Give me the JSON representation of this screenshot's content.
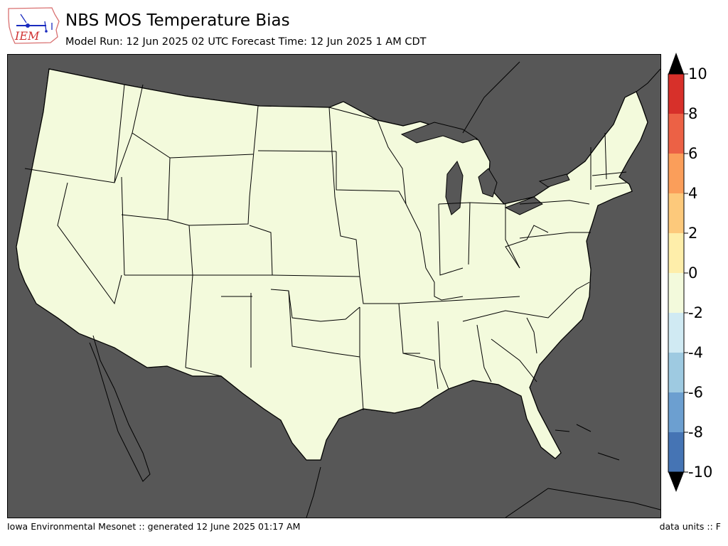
{
  "header": {
    "title": "NBS MOS Temperature Bias",
    "subtitle": "Model Run: 12 Jun 2025 02 UTC Forecast Time: 12 Jun 2025 1 AM CDT"
  },
  "logo": {
    "text": "IEM"
  },
  "colorbar": {
    "ticks": [
      "10",
      "8",
      "6",
      "4",
      "2",
      "0",
      "-2",
      "-4",
      "-6",
      "-8",
      "-10"
    ],
    "bins": [
      {
        "range": [
          8,
          10
        ],
        "color": "#d7302a"
      },
      {
        "range": [
          6,
          8
        ],
        "color": "#ec6145"
      },
      {
        "range": [
          4,
          6
        ],
        "color": "#fb9e5a"
      },
      {
        "range": [
          2,
          4
        ],
        "color": "#fdc97b"
      },
      {
        "range": [
          0,
          2
        ],
        "color": "#feeeaa"
      },
      {
        "range": [
          -2,
          0
        ],
        "color": "#f3fadc"
      },
      {
        "range": [
          -4,
          -2
        ],
        "color": "#d0eaf3"
      },
      {
        "range": [
          -6,
          -4
        ],
        "color": "#9ecae1"
      },
      {
        "range": [
          -8,
          -6
        ],
        "color": "#6c9fd0"
      },
      {
        "range": [
          -10,
          -8
        ],
        "color": "#4574b4"
      }
    ],
    "extend": "both"
  },
  "map": {
    "ocean_color": "#575757",
    "land_color": "#f3fadc"
  },
  "footer": {
    "left": "Iowa Environmental Mesonet :: generated 12 June 2025 01:17 AM",
    "right": "data units :: F"
  }
}
